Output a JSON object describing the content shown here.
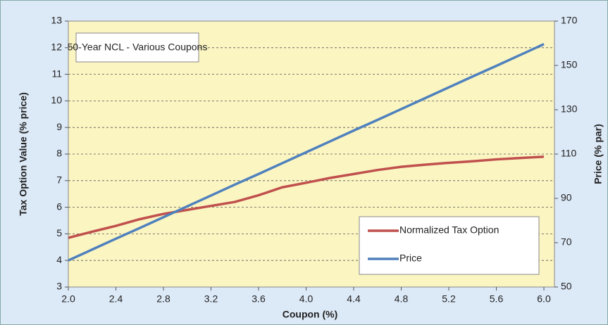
{
  "chart_data": {
    "type": "line",
    "title": "50-Year NCL - Various Coupons",
    "x_label": "Coupon (%)",
    "y_label": "Tax Option Value (% price)",
    "y2_label": "Price (% par)",
    "x": [
      2.0,
      2.2,
      2.4,
      2.6,
      2.8,
      3.0,
      3.2,
      3.4,
      3.6,
      3.8,
      4.0,
      4.2,
      4.4,
      4.6,
      4.8,
      5.0,
      5.2,
      5.4,
      5.6,
      5.8,
      6.0
    ],
    "series": [
      {
        "name": "Normalized Tax Option",
        "color": "#c0504d",
        "values": [
          4.85,
          5.08,
          5.3,
          5.55,
          5.75,
          5.9,
          6.05,
          6.2,
          6.45,
          6.75,
          6.92,
          7.1,
          7.25,
          7.4,
          7.52,
          7.6,
          7.67,
          7.73,
          7.8,
          7.85,
          7.9
        ]
      },
      {
        "name": "Price",
        "color": "#4f81bd",
        "axis": "y2",
        "values": [
          62,
          66.9,
          71.8,
          76.6,
          81.5,
          86.4,
          91.3,
          96.2,
          101,
          105.9,
          110.8,
          115.7,
          120.6,
          125.4,
          130.3,
          135.2,
          140.1,
          145,
          149.8,
          154.7,
          159.6
        ]
      }
    ],
    "xlim": [
      2.0,
      6.0
    ],
    "xticks": [
      {
        "value": 2.0,
        "label": "2.0"
      },
      2.4,
      2.8,
      3.2,
      3.6,
      {
        "value": 4.0,
        "label": "4.0"
      },
      4.4,
      4.8,
      5.2,
      5.6,
      {
        "value": 6.0,
        "label": "6.0"
      }
    ],
    "ylim": [
      3,
      13
    ],
    "yticks": [
      3,
      4,
      5,
      6,
      7,
      8,
      9,
      10,
      11,
      12,
      13
    ],
    "y2lim": [
      50,
      170
    ],
    "y2ticks": [
      50,
      70,
      90,
      110,
      130,
      150,
      170
    ],
    "grid": true,
    "legend": "lower right"
  }
}
